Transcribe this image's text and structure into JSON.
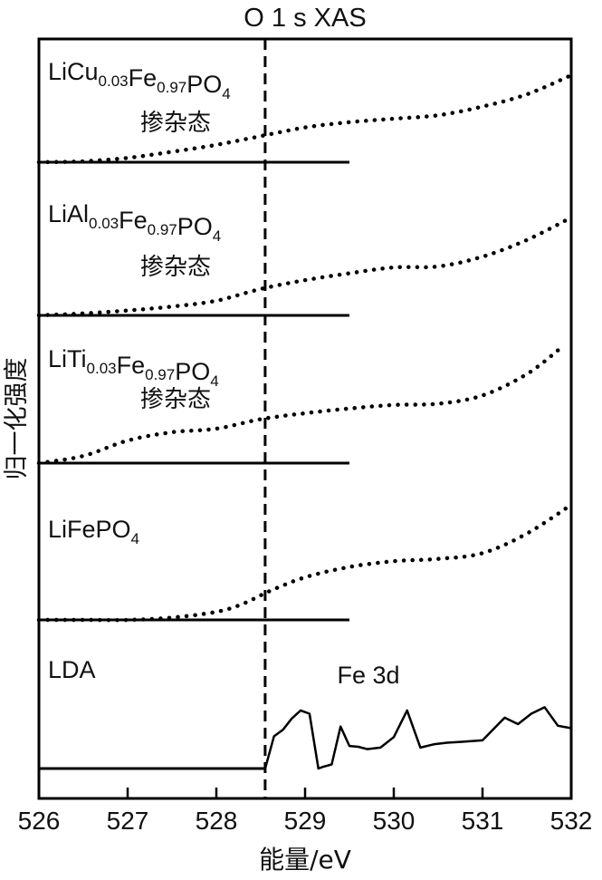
{
  "chart_data": {
    "type": "line",
    "title": "O 1 s XAS",
    "xlabel": "能量/eV",
    "ylabel": "归一化强度",
    "xlim": [
      526,
      532
    ],
    "xticks": [
      "526",
      "527",
      "528",
      "529",
      "530",
      "531",
      "532"
    ],
    "reference_line_x": 528.55,
    "dopant_label": "掺杂态",
    "series": [
      {
        "name": "LiCu0.03Fe0.97PO4",
        "label": {
          "pre": "LiCu",
          "s1": "0.03",
          "mid": "Fe",
          "s2": "0.97",
          "post": "PO",
          "s3": "4"
        },
        "style": "dotted",
        "baseline_x_end": 529.5,
        "x": [
          526.0,
          526.5,
          527.0,
          527.5,
          528.0,
          528.5,
          529.0,
          529.5,
          530.0,
          530.5,
          531.0,
          531.5,
          532.0
        ],
        "y": [
          0.0,
          0.01,
          0.05,
          0.12,
          0.2,
          0.3,
          0.4,
          0.46,
          0.5,
          0.54,
          0.64,
          0.78,
          1.0
        ]
      },
      {
        "name": "LiAl0.03Fe0.97PO4",
        "label": {
          "pre": "LiAl",
          "s1": "0.03",
          "mid": "Fe",
          "s2": "0.97",
          "post": "PO",
          "s3": "4"
        },
        "style": "dotted",
        "baseline_x_end": 529.5,
        "x": [
          526.0,
          526.5,
          527.0,
          527.5,
          528.0,
          528.5,
          529.0,
          529.5,
          530.0,
          530.5,
          531.0,
          531.5,
          532.0
        ],
        "y": [
          0.0,
          0.02,
          0.05,
          0.09,
          0.15,
          0.27,
          0.36,
          0.43,
          0.49,
          0.5,
          0.6,
          0.77,
          1.0
        ]
      },
      {
        "name": "LiTi0.03Fe0.97PO4",
        "label": {
          "pre": "LiTi",
          "s1": "0.03",
          "mid": "Fe",
          "s2": "0.97",
          "post": "PO",
          "s3": "4"
        },
        "style": "dotted",
        "baseline_x_end": 529.5,
        "x": [
          526.0,
          526.5,
          527.0,
          527.5,
          528.0,
          528.5,
          529.0,
          529.5,
          530.0,
          530.5,
          531.0,
          531.5,
          531.9
        ],
        "y": [
          0.0,
          0.06,
          0.19,
          0.26,
          0.29,
          0.37,
          0.42,
          0.46,
          0.49,
          0.5,
          0.57,
          0.75,
          0.98
        ]
      },
      {
        "name": "LiFePO4",
        "label": {
          "pre": "LiFePO",
          "s1": "",
          "mid": "",
          "s2": "",
          "post": "",
          "s3": "4"
        },
        "style": "dotted",
        "baseline_x_end": 529.5,
        "x": [
          526.0,
          526.5,
          527.0,
          527.5,
          528.0,
          528.3,
          528.6,
          529.0,
          529.5,
          530.0,
          530.5,
          531.0,
          531.5,
          532.0
        ],
        "y": [
          0.0,
          0.0,
          0.0,
          0.02,
          0.07,
          0.14,
          0.25,
          0.37,
          0.46,
          0.51,
          0.53,
          0.58,
          0.75,
          1.0
        ]
      },
      {
        "name": "LDA",
        "label": {
          "pre": "LDA",
          "s1": "",
          "mid": "",
          "s2": "",
          "post": "",
          "s3": ""
        },
        "annotation": "Fe 3d",
        "style": "solid",
        "baseline_x_end": 528.55,
        "x": [
          528.55,
          528.65,
          528.75,
          528.85,
          528.95,
          529.05,
          529.15,
          529.2,
          529.3,
          529.4,
          529.5,
          529.6,
          529.7,
          529.85,
          530.0,
          530.15,
          530.3,
          530.45,
          530.6,
          530.75,
          531.0,
          531.25,
          531.4,
          531.55,
          531.7,
          531.85,
          532.0
        ],
        "y": [
          0.0,
          0.4,
          0.48,
          0.62,
          0.72,
          0.68,
          0.0,
          0.02,
          0.05,
          0.52,
          0.28,
          0.27,
          0.24,
          0.26,
          0.39,
          0.72,
          0.26,
          0.3,
          0.32,
          0.33,
          0.35,
          0.63,
          0.55,
          0.68,
          0.76,
          0.53,
          0.5
        ]
      }
    ]
  }
}
